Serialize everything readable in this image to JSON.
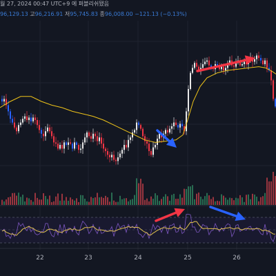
{
  "header": {
    "date_text": "월 27, 2024 00:47 UTC+9 에 퍼블리쉬됐음",
    "open_value": "96,129.13",
    "high_label": "고",
    "high_value": "96,216.91",
    "low_label": "저",
    "low_value": "95,745.83",
    "close_label": "종",
    "close_value": "96,008.00",
    "change_value": "−121.13 (−0.13%)"
  },
  "colors": {
    "background": "#131722",
    "candle_up": "#e8e8e8",
    "candle_down": "#f23645",
    "candle_down_alt": "#2962ff",
    "moving_average": "#f0c419",
    "volume_up": "#2e7d5b",
    "volume_down": "#b23b44",
    "rsi_line": "#7e57c2",
    "rsi_avg": "#e0c050",
    "arrow_red": "#f23645",
    "arrow_blue": "#2962ff"
  },
  "chart_data": {
    "type": "candlestick",
    "x_tick_labels": [
      "22",
      "23",
      "24",
      "25",
      "26"
    ],
    "price_series": [
      [
        0,
        62
      ],
      [
        3,
        60
      ],
      [
        6,
        62
      ],
      [
        9,
        57
      ],
      [
        12,
        52
      ],
      [
        15,
        46
      ],
      [
        18,
        43
      ],
      [
        21,
        39
      ],
      [
        24,
        36
      ],
      [
        27,
        41
      ],
      [
        30,
        43
      ],
      [
        33,
        46
      ],
      [
        36,
        48
      ],
      [
        39,
        45
      ],
      [
        42,
        47
      ],
      [
        45,
        44
      ],
      [
        48,
        47
      ],
      [
        51,
        45
      ],
      [
        54,
        41
      ],
      [
        57,
        37
      ],
      [
        60,
        34
      ],
      [
        63,
        32
      ],
      [
        66,
        36
      ],
      [
        69,
        39
      ],
      [
        72,
        36
      ],
      [
        75,
        32
      ],
      [
        78,
        27
      ],
      [
        81,
        26
      ],
      [
        84,
        22
      ],
      [
        87,
        25
      ],
      [
        90,
        22
      ],
      [
        93,
        27
      ],
      [
        96,
        25
      ],
      [
        99,
        27
      ],
      [
        102,
        26
      ],
      [
        105,
        22
      ],
      [
        108,
        27
      ],
      [
        111,
        25
      ],
      [
        114,
        21
      ],
      [
        117,
        22
      ],
      [
        120,
        27
      ],
      [
        123,
        31
      ],
      [
        126,
        35
      ],
      [
        129,
        32
      ],
      [
        132,
        30
      ],
      [
        135,
        34
      ],
      [
        138,
        32
      ],
      [
        141,
        28
      ],
      [
        144,
        31
      ],
      [
        147,
        26
      ],
      [
        150,
        22
      ],
      [
        153,
        20
      ],
      [
        156,
        17
      ],
      [
        159,
        15
      ],
      [
        162,
        17
      ],
      [
        165,
        13
      ],
      [
        168,
        12
      ],
      [
        171,
        15
      ],
      [
        174,
        18
      ],
      [
        177,
        21
      ],
      [
        180,
        25
      ],
      [
        183,
        23
      ],
      [
        186,
        29
      ],
      [
        189,
        31
      ],
      [
        192,
        35
      ],
      [
        195,
        37
      ],
      [
        198,
        43
      ],
      [
        201,
        41
      ],
      [
        204,
        38
      ],
      [
        207,
        32
      ],
      [
        210,
        28
      ],
      [
        213,
        26
      ],
      [
        216,
        20
      ],
      [
        219,
        17
      ],
      [
        222,
        23
      ],
      [
        225,
        25
      ],
      [
        228,
        30
      ],
      [
        231,
        34
      ],
      [
        234,
        31
      ],
      [
        237,
        34
      ],
      [
        240,
        37
      ],
      [
        243,
        35
      ],
      [
        246,
        38
      ],
      [
        249,
        40
      ],
      [
        252,
        43
      ],
      [
        255,
        41
      ],
      [
        258,
        39
      ],
      [
        261,
        42
      ],
      [
        264,
        40
      ],
      [
        267,
        36
      ],
      [
        270,
        52
      ],
      [
        273,
        70
      ],
      [
        276,
        83
      ],
      [
        279,
        87
      ],
      [
        282,
        91
      ],
      [
        285,
        88
      ],
      [
        288,
        85
      ],
      [
        291,
        87
      ],
      [
        294,
        90
      ],
      [
        297,
        92
      ],
      [
        300,
        93
      ],
      [
        303,
        89
      ],
      [
        306,
        87
      ],
      [
        309,
        86
      ],
      [
        312,
        90
      ],
      [
        315,
        89
      ],
      [
        318,
        86
      ],
      [
        321,
        88
      ],
      [
        324,
        85
      ],
      [
        327,
        87
      ],
      [
        330,
        91
      ],
      [
        333,
        93
      ],
      [
        336,
        89
      ],
      [
        339,
        88
      ],
      [
        342,
        91
      ],
      [
        345,
        93
      ],
      [
        348,
        89
      ],
      [
        351,
        90
      ],
      [
        354,
        92
      ],
      [
        357,
        90
      ],
      [
        360,
        93
      ],
      [
        363,
        95
      ],
      [
        366,
        92
      ],
      [
        369,
        94
      ],
      [
        372,
        97
      ],
      [
        375,
        95
      ],
      [
        378,
        93
      ],
      [
        381,
        90
      ],
      [
        384,
        93
      ],
      [
        387,
        87
      ],
      [
        390,
        85
      ],
      [
        393,
        77
      ],
      [
        396,
        62
      ],
      [
        399,
        56
      ]
    ],
    "ma_series": [
      [
        0,
        55
      ],
      [
        15,
        60
      ],
      [
        30,
        64
      ],
      [
        45,
        64
      ],
      [
        60,
        60
      ],
      [
        75,
        57
      ],
      [
        90,
        55
      ],
      [
        105,
        52
      ],
      [
        120,
        50
      ],
      [
        135,
        48
      ],
      [
        150,
        45
      ],
      [
        165,
        41
      ],
      [
        180,
        37
      ],
      [
        195,
        33
      ],
      [
        210,
        29
      ],
      [
        225,
        27
      ],
      [
        240,
        28
      ],
      [
        255,
        29
      ],
      [
        265,
        33
      ],
      [
        272,
        45
      ],
      [
        280,
        60
      ],
      [
        290,
        72
      ],
      [
        300,
        79
      ],
      [
        315,
        83
      ],
      [
        330,
        85
      ],
      [
        345,
        86
      ],
      [
        360,
        87
      ],
      [
        375,
        88
      ],
      [
        385,
        87
      ],
      [
        395,
        84
      ],
      [
        400,
        82
      ]
    ],
    "y_range": [
      0,
      100
    ],
    "indicator_range": [
      0,
      100
    ],
    "annotations": [
      {
        "type": "arrow",
        "color": "red",
        "direction": "up-right",
        "panel": "price"
      },
      {
        "type": "arrow",
        "color": "blue",
        "direction": "down-right",
        "panel": "price"
      },
      {
        "type": "arrow",
        "color": "red",
        "direction": "up-right",
        "panel": "indicator"
      },
      {
        "type": "arrow",
        "color": "blue",
        "direction": "down-right",
        "panel": "indicator"
      }
    ]
  }
}
